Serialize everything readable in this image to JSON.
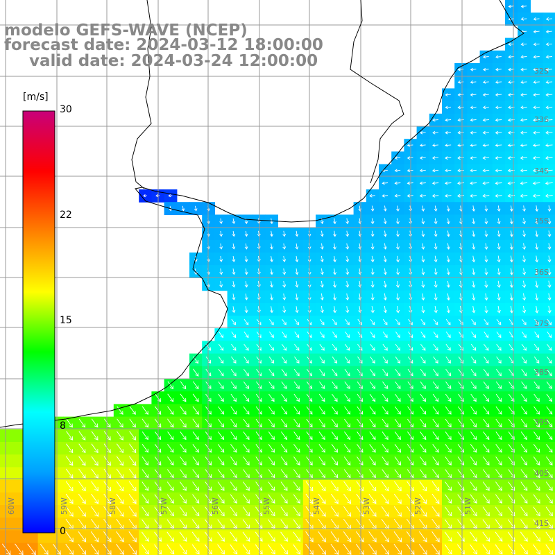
{
  "header": {
    "line1": "modelo GEFS-WAVE (NCEP)",
    "line2": "forecast date: 2024-03-12 18:00:00",
    "line3": "valid date: 2024-03-24 12:00:00"
  },
  "colorbar": {
    "units": "[m/s]",
    "ticks": [
      "30",
      "22",
      "15",
      "8",
      "0"
    ],
    "tick_values": [
      30,
      22,
      15,
      8,
      0
    ],
    "min": 0,
    "max": 30,
    "colors": [
      "#0000ff",
      "#00a0ff",
      "#00ffff",
      "#00ff00",
      "#ffff00",
      "#ff8000",
      "#ff0000",
      "#c8007a"
    ]
  },
  "map": {
    "lon_labels": [
      "60W",
      "59W",
      "58W",
      "57W",
      "56W",
      "55W",
      "54W",
      "53W",
      "52W",
      "51W"
    ],
    "lat_labels": [
      "32S",
      "33S",
      "34S",
      "35S",
      "36S",
      "37S",
      "38S",
      "39S",
      "40S",
      "41S"
    ],
    "land_color": "#ffffff",
    "grid_color": "#999999",
    "arrow_color": "#ffffff"
  }
}
